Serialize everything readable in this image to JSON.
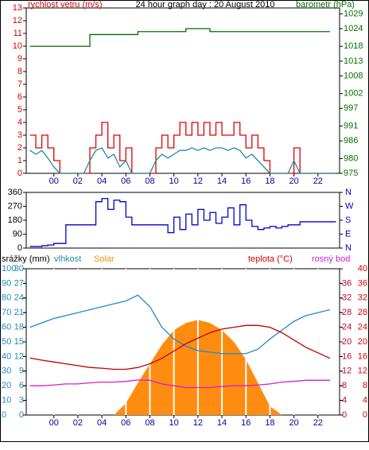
{
  "chart_data": [
    {
      "type": "line",
      "y_label": "rychlost vetru (m/s)",
      "title": "24 hour graph day : 20 August 2010",
      "y2_label": "barometr (hPa)",
      "xlim": [
        -2.3,
        23.8
      ],
      "xticks": [
        {
          "value": 0,
          "label": "00"
        },
        {
          "value": 2,
          "label": "02"
        },
        {
          "value": 4,
          "label": "04"
        },
        {
          "value": 6,
          "label": "06"
        },
        {
          "value": 8,
          "label": "08"
        },
        10,
        12,
        14,
        16,
        18,
        20,
        22
      ],
      "ylim": [
        0,
        13
      ],
      "yticks": [
        0,
        1,
        2,
        3,
        4,
        5,
        6,
        7,
        8,
        9,
        10,
        11,
        12,
        13
      ],
      "y2lim": [
        975,
        1031
      ],
      "y2ticks": [
        975,
        980,
        986,
        991,
        997,
        1002,
        1008,
        1013,
        1018,
        1024,
        1029
      ],
      "series": [
        {
          "color": "#e00000",
          "x": [
            -2,
            -1.5,
            -1,
            -0.5,
            0,
            0.5,
            1,
            1.5,
            2,
            2.5,
            3,
            3.5,
            4,
            4.5,
            5,
            5.5,
            6,
            6.5,
            7,
            7.5,
            8,
            8.5,
            9,
            9.5,
            10,
            10.5,
            11,
            11.5,
            12,
            12.5,
            13,
            13.5,
            14,
            14.5,
            15,
            15.5,
            16,
            16.5,
            17,
            17.5,
            18,
            18.5,
            19,
            19.5,
            20,
            20.5,
            21,
            21.5,
            22,
            22.5,
            23,
            23.5
          ],
          "values": [
            3,
            2,
            3,
            2,
            1,
            0,
            0,
            0,
            0,
            0,
            2,
            3,
            4,
            2,
            3,
            1,
            2,
            0,
            0,
            0,
            0,
            2,
            3,
            2,
            3,
            4,
            3,
            4,
            3,
            4,
            3,
            4,
            3,
            3,
            4,
            3,
            2,
            3,
            2,
            1,
            0,
            0,
            0,
            0,
            2,
            0,
            0,
            0,
            0,
            0,
            0,
            0
          ],
          "step": true
        },
        {
          "color": "#208c9c",
          "x": [
            -2,
            -1.5,
            -1,
            -0.5,
            0,
            0.5,
            1,
            1.5,
            2,
            2.5,
            3,
            3.5,
            4,
            4.5,
            5,
            5.5,
            6,
            6.5,
            7,
            7.5,
            8,
            8.5,
            9,
            9.5,
            10,
            10.5,
            11,
            11.5,
            12,
            12.5,
            13,
            13.5,
            14,
            14.5,
            15,
            15.5,
            16,
            16.5,
            17,
            17.5,
            18,
            18.5,
            19,
            19.5,
            20,
            20.5,
            21,
            21.5,
            22,
            22.5,
            23,
            23.5
          ],
          "values": [
            1.8,
            1.5,
            1.8,
            1.2,
            0.5,
            0,
            0,
            0,
            0,
            0,
            1,
            1.8,
            2,
            1.2,
            1.5,
            0.5,
            1,
            0,
            0,
            0,
            0,
            1,
            1.5,
            1.2,
            1.5,
            1.8,
            1.8,
            2,
            1.8,
            2,
            1.8,
            2,
            2,
            1.8,
            2,
            1.8,
            1.2,
            1.5,
            1,
            0.5,
            0,
            0,
            0,
            0,
            1,
            0,
            0,
            0,
            0,
            0,
            0,
            0
          ]
        },
        {
          "color": "#006e00",
          "axis": "y2",
          "step": true,
          "x": [
            -2,
            -1,
            0,
            1,
            2,
            3,
            4,
            5,
            6,
            7,
            8,
            9,
            10,
            11,
            12,
            13,
            14,
            15,
            16,
            17,
            18,
            19,
            20,
            21,
            22,
            23
          ],
          "values": [
            1018,
            1018,
            1018,
            1018,
            1018,
            1022,
            1022,
            1022,
            1022,
            1023,
            1023,
            1023,
            1023,
            1024,
            1024,
            1023,
            1023,
            1023,
            1023,
            1023,
            1023,
            1023,
            1023,
            1023,
            1023,
            1023
          ]
        }
      ]
    },
    {
      "type": "line",
      "xlim": [
        -2.3,
        23.8
      ],
      "ylim": [
        0,
        360
      ],
      "yticks": [
        0,
        90,
        180,
        270,
        360
      ],
      "y2lim": [
        0,
        360
      ],
      "y2ticks": [
        {
          "value": 0,
          "label": "N"
        },
        {
          "value": 90,
          "label": "E"
        },
        {
          "value": 180,
          "label": "S"
        },
        {
          "value": 270,
          "label": "W"
        },
        {
          "value": 360,
          "label": "N"
        }
      ],
      "series": [
        {
          "color": "#0000d0",
          "step": true,
          "x": [
            -2,
            -1.5,
            -1,
            -0.5,
            0,
            0.5,
            1,
            1.5,
            2,
            2.5,
            3,
            3.5,
            4,
            4.5,
            5,
            5.5,
            6,
            6.5,
            7,
            7.5,
            8,
            8.5,
            9,
            9.5,
            10,
            10.5,
            11,
            11.5,
            12,
            12.5,
            13,
            13.5,
            14,
            14.5,
            15,
            15.5,
            16,
            16.5,
            17,
            17.5,
            18,
            18.5,
            19,
            19.5,
            20,
            20.5,
            21,
            21.5,
            22,
            22.5,
            23,
            23.5
          ],
          "values": [
            10,
            10,
            15,
            20,
            30,
            30,
            150,
            150,
            150,
            150,
            150,
            300,
            320,
            250,
            310,
            300,
            200,
            150,
            150,
            150,
            150,
            150,
            150,
            100,
            200,
            120,
            220,
            150,
            250,
            180,
            230,
            160,
            200,
            260,
            150,
            280,
            180,
            140,
            120,
            130,
            140,
            130,
            140,
            150,
            150,
            170,
            170,
            170,
            170,
            170,
            170,
            170
          ]
        }
      ]
    },
    {
      "type": "line",
      "labels": [
        "srážky (mm)",
        "vlhkost",
        "Solar",
        "teplota (°C)",
        "rosný bod"
      ],
      "xlim": [
        -2.3,
        23.8
      ],
      "xticks": [
        {
          "value": 0,
          "label": "00"
        },
        {
          "value": 2,
          "label": "02"
        },
        {
          "value": 4,
          "label": "04"
        },
        {
          "value": 6,
          "label": "06"
        },
        {
          "value": 8,
          "label": "08"
        },
        10,
        12,
        14,
        16,
        18,
        20,
        22
      ],
      "ylim": [
        0,
        100
      ],
      "yticks": [
        0,
        10,
        20,
        30,
        40,
        50,
        60,
        70,
        80,
        90,
        100
      ],
      "y3lim": [
        0,
        30
      ],
      "y3ticks": [
        0,
        3,
        6,
        9,
        12,
        15,
        18,
        21,
        24,
        27,
        30
      ],
      "y2lim": [
        0,
        40
      ],
      "y2ticks": [
        0,
        4,
        8,
        12,
        16,
        20,
        24,
        28,
        32,
        36,
        40
      ],
      "y4lim": [
        0,
        40
      ],
      "y4ticks": [
        0,
        4,
        8,
        12,
        16,
        20,
        24,
        28,
        32,
        36
      ],
      "series": [
        {
          "color": "#ff8c10",
          "fill": true,
          "x": [
            -2,
            -1,
            0,
            1,
            2,
            3,
            4,
            5,
            6,
            7,
            8,
            9,
            10,
            11,
            12,
            13,
            14,
            15,
            16,
            17,
            18,
            19,
            20,
            21,
            22,
            23
          ],
          "values": [
            0,
            0,
            0,
            0,
            0,
            0,
            0,
            0,
            8,
            22,
            35,
            48,
            58,
            63,
            65,
            63,
            58,
            50,
            38,
            22,
            6,
            0,
            0,
            0,
            0,
            0
          ]
        },
        {
          "color": "#2088d0",
          "x": [
            -2,
            -1,
            0,
            1,
            2,
            3,
            4,
            5,
            6,
            7,
            8,
            9,
            10,
            11,
            12,
            13,
            14,
            15,
            16,
            17,
            18,
            19,
            20,
            21,
            22,
            23
          ],
          "values": [
            60,
            63,
            66,
            68,
            70,
            72,
            74,
            76,
            78,
            82,
            74,
            60,
            52,
            47,
            44,
            43,
            42,
            42,
            42,
            45,
            52,
            58,
            64,
            68,
            70,
            72
          ]
        },
        {
          "color": "#c00000",
          "axis": "y2",
          "x": [
            -2,
            -1,
            0,
            1,
            2,
            3,
            4,
            5,
            6,
            7,
            8,
            9,
            10,
            11,
            12,
            13,
            14,
            15,
            16,
            17,
            18,
            19,
            20,
            21,
            22,
            23
          ],
          "values": [
            15.6,
            15,
            14.5,
            14,
            13.5,
            13,
            12.8,
            12.5,
            12.5,
            13,
            14,
            15.5,
            17.5,
            19.5,
            21,
            22.5,
            23.5,
            24,
            24.5,
            24.5,
            24,
            22.5,
            20.5,
            18.5,
            17,
            15.5
          ]
        },
        {
          "color": "#d020d0",
          "axis": "y2",
          "x": [
            -2,
            -1,
            0,
            1,
            2,
            3,
            4,
            5,
            6,
            7,
            8,
            9,
            10,
            11,
            12,
            13,
            14,
            15,
            16,
            17,
            18,
            19,
            20,
            21,
            22,
            23
          ],
          "values": [
            8,
            8,
            8.2,
            8.5,
            8.5,
            8.8,
            9,
            9,
            9.2,
            9.6,
            9.5,
            8.5,
            8,
            7.5,
            7.5,
            7.5,
            7.8,
            8,
            8,
            8.2,
            8.5,
            9,
            9.2,
            9.5,
            9.5,
            9.5
          ]
        }
      ]
    }
  ]
}
